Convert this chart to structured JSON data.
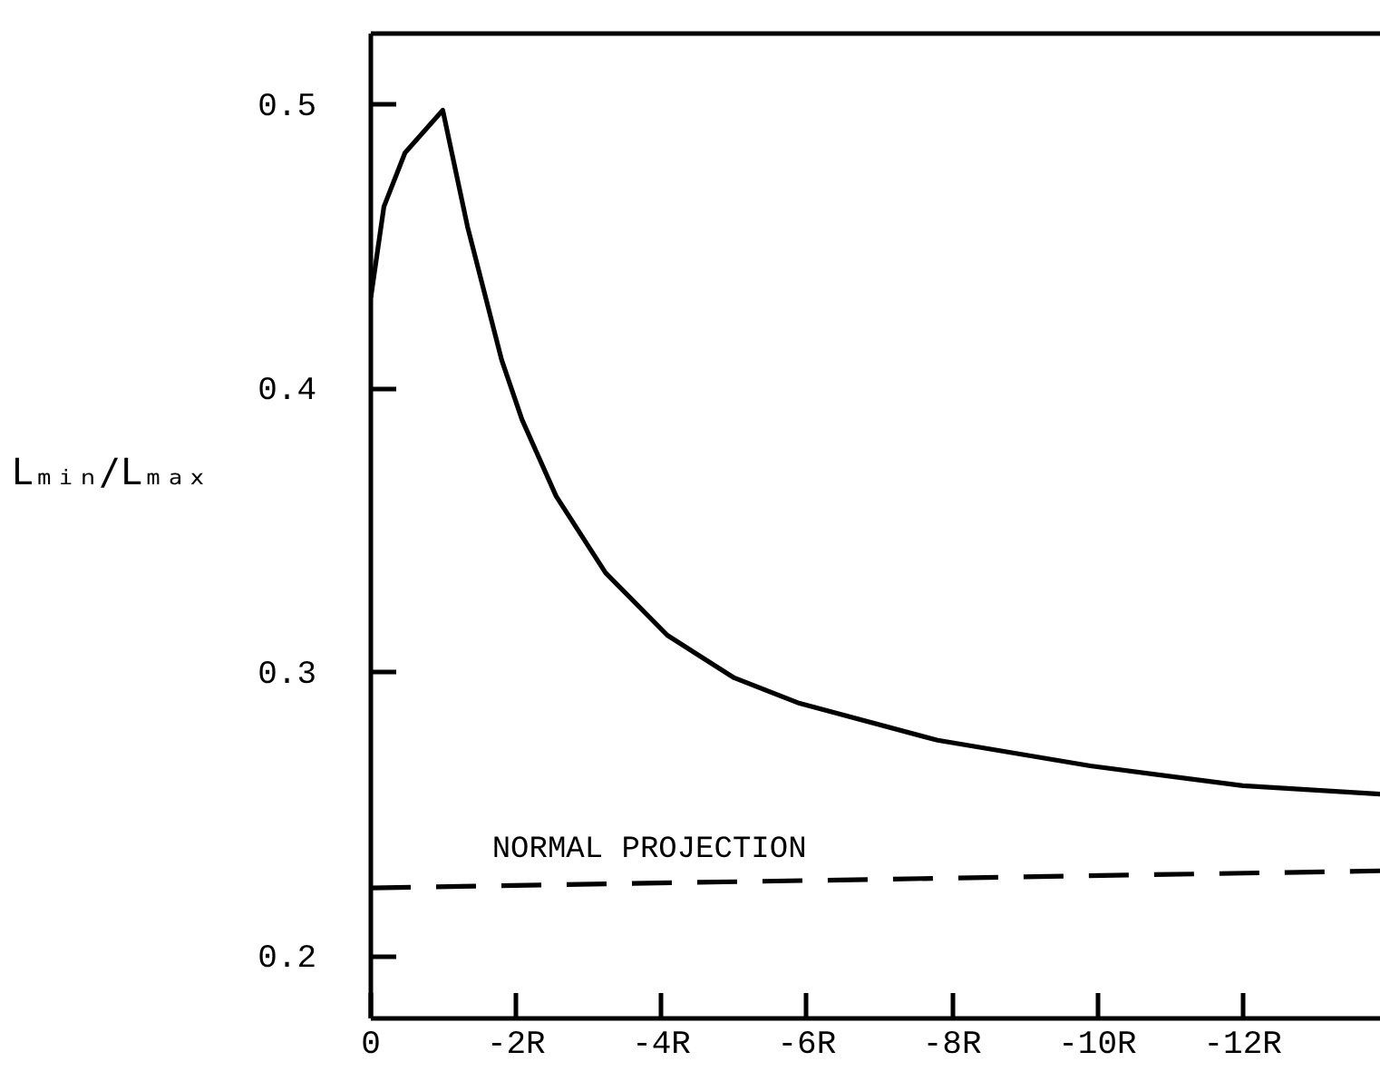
{
  "chart_data": {
    "type": "line",
    "ylabel": "Lₘᵢₙ/Lₘₐₓ",
    "xlim": [
      0,
      -13.9
    ],
    "ylim": [
      0.178,
      0.525
    ],
    "xticks": [
      {
        "value": 0,
        "label": "0"
      },
      {
        "value": -2,
        "label": "-2R"
      },
      {
        "value": -4,
        "label": "-4R"
      },
      {
        "value": -6,
        "label": "-6R"
      },
      {
        "value": -8,
        "label": "-8R"
      },
      {
        "value": -10,
        "label": "-10R"
      },
      {
        "value": -12,
        "label": "-12R"
      }
    ],
    "yticks": [
      0.2,
      0.3,
      0.4,
      0.5
    ],
    "grid": false,
    "series": [
      {
        "color": "#000000",
        "line_style": "solid",
        "x": [
          0,
          -0.18,
          -0.47,
          -0.99,
          -1.33,
          -1.8,
          -2.08,
          -2.55,
          -3.23,
          -4.08,
          -5.0,
          -5.9,
          -7.8,
          -9.9,
          -12.0,
          -13.9
        ],
        "values": [
          0.432,
          0.464,
          0.483,
          0.498,
          0.457,
          0.41,
          0.389,
          0.362,
          0.335,
          0.313,
          0.298,
          0.289,
          0.276,
          0.267,
          0.26,
          0.257
        ]
      },
      {
        "name": "NORMAL PROJECTION",
        "color": "#000000",
        "line_style": "dashed",
        "x": [
          0,
          -13.9
        ],
        "values": [
          0.224,
          0.23
        ]
      }
    ]
  }
}
